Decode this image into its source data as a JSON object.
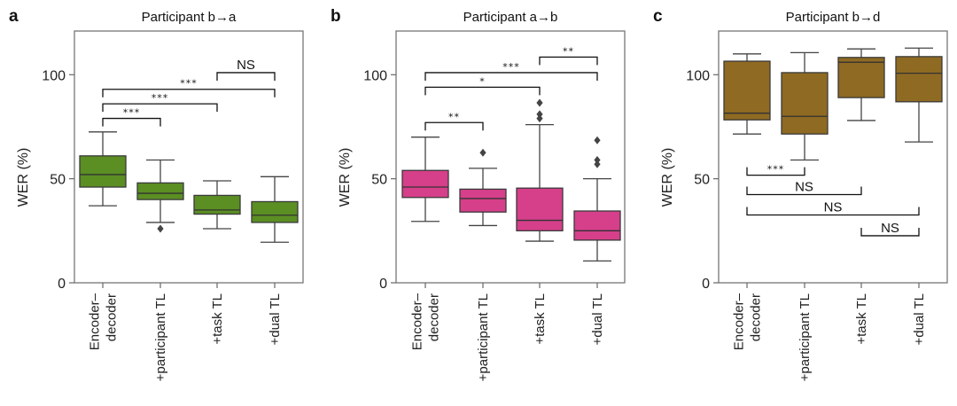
{
  "chart_data": [
    {
      "type": "box",
      "panel_letter": "a",
      "title": "Participant b→a",
      "ylabel": "WER (%)",
      "xlabel": "",
      "ylim": [
        0,
        121
      ],
      "yticks": [
        0,
        50,
        100
      ],
      "color": "#5b8e23",
      "categories": [
        {
          "lines": [
            "Encoder–",
            "decoder"
          ]
        },
        {
          "lines": [
            "+participant TL"
          ]
        },
        {
          "lines": [
            "+task TL"
          ]
        },
        {
          "lines": [
            "+dual TL"
          ]
        }
      ],
      "boxes": [
        {
          "whisker_low": 37,
          "q1": 46,
          "median": 52,
          "q3": 61,
          "whisker_high": 72.5,
          "outliers": []
        },
        {
          "whisker_low": 29,
          "q1": 40,
          "median": 43,
          "q3": 48,
          "whisker_high": 59,
          "outliers": [
            26
          ]
        },
        {
          "whisker_low": 26,
          "q1": 33,
          "median": 35,
          "q3": 42,
          "whisker_high": 49,
          "outliers": []
        },
        {
          "whisker_low": 19.5,
          "q1": 29,
          "median": 32.5,
          "q3": 39,
          "whisker_high": 51,
          "outliers": []
        }
      ],
      "significance": [
        {
          "from": 0,
          "to": 1,
          "y": 79,
          "label": "***",
          "direction": "down"
        },
        {
          "from": 0,
          "to": 2,
          "y": 86,
          "label": "***",
          "direction": "down"
        },
        {
          "from": 0,
          "to": 3,
          "y": 93,
          "label": "***",
          "direction": "down"
        },
        {
          "from": 2,
          "to": 3,
          "y": 101,
          "label": "NS",
          "direction": "down"
        }
      ]
    },
    {
      "type": "box",
      "panel_letter": "b",
      "title": "Participant a→b",
      "ylabel": "WER (%)",
      "xlabel": "",
      "ylim": [
        0,
        121
      ],
      "yticks": [
        0,
        50,
        100
      ],
      "color": "#d63f8a",
      "categories": [
        {
          "lines": [
            "Encoder–",
            "decoder"
          ]
        },
        {
          "lines": [
            "+participant TL"
          ]
        },
        {
          "lines": [
            "+task TL"
          ]
        },
        {
          "lines": [
            "+dual TL"
          ]
        }
      ],
      "boxes": [
        {
          "whisker_low": 29.5,
          "q1": 41,
          "median": 46,
          "q3": 54,
          "whisker_high": 70,
          "outliers": []
        },
        {
          "whisker_low": 27.5,
          "q1": 34,
          "median": 40.5,
          "q3": 45,
          "whisker_high": 55,
          "outliers": [
            62.5
          ]
        },
        {
          "whisker_low": 20,
          "q1": 25,
          "median": 30,
          "q3": 45.5,
          "whisker_high": 76,
          "outliers": [
            79,
            81,
            86.5
          ]
        },
        {
          "whisker_low": 10.5,
          "q1": 20.5,
          "median": 25,
          "q3": 34.5,
          "whisker_high": 50,
          "outliers": [
            57,
            59,
            68.5
          ]
        }
      ],
      "significance": [
        {
          "from": 0,
          "to": 1,
          "y": 77,
          "label": "**",
          "direction": "down"
        },
        {
          "from": 0,
          "to": 2,
          "y": 94,
          "label": "*",
          "direction": "down"
        },
        {
          "from": 0,
          "to": 3,
          "y": 101,
          "label": "***",
          "direction": "down"
        },
        {
          "from": 2,
          "to": 3,
          "y": 108.5,
          "label": "**",
          "direction": "down"
        }
      ]
    },
    {
      "type": "box",
      "panel_letter": "c",
      "title": "Participant b→d",
      "ylabel": "WER (%)",
      "xlabel": "",
      "ylim": [
        0,
        121
      ],
      "yticks": [
        0,
        50,
        100
      ],
      "color": "#8f6a22",
      "categories": [
        {
          "lines": [
            "Encoder–",
            "decoder"
          ]
        },
        {
          "lines": [
            "+participant TL"
          ]
        },
        {
          "lines": [
            "+task TL"
          ]
        },
        {
          "lines": [
            "+dual TL"
          ]
        }
      ],
      "boxes": [
        {
          "whisker_low": 71.5,
          "q1": 78.3,
          "median": 81.5,
          "q3": 106.5,
          "whisker_high": 110,
          "outliers": []
        },
        {
          "whisker_low": 59,
          "q1": 71.5,
          "median": 80,
          "q3": 101,
          "whisker_high": 110.6,
          "outliers": []
        },
        {
          "whisker_low": 78,
          "q1": 89,
          "median": 106,
          "q3": 108.3,
          "whisker_high": 112.4,
          "outliers": []
        },
        {
          "whisker_low": 67.7,
          "q1": 87,
          "median": 100.7,
          "q3": 108.7,
          "whisker_high": 112.8,
          "outliers": []
        }
      ],
      "significance": [
        {
          "from": 0,
          "to": 1,
          "y": 51.7,
          "label": "***",
          "direction": "up"
        },
        {
          "from": 0,
          "to": 2,
          "y": 42.4,
          "label": "NS",
          "direction": "up"
        },
        {
          "from": 0,
          "to": 3,
          "y": 32.6,
          "label": "NS",
          "direction": "up"
        },
        {
          "from": 2,
          "to": 3,
          "y": 22.6,
          "label": "NS",
          "direction": "up"
        }
      ]
    }
  ]
}
